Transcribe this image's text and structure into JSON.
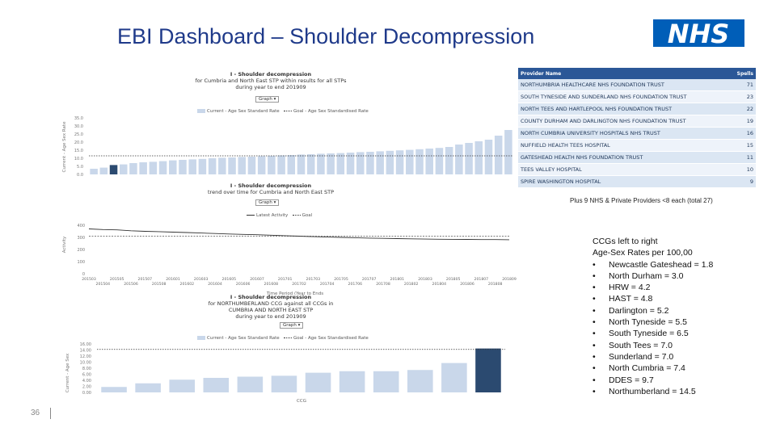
{
  "title": "EBI Dashboard – Shoulder Decompression",
  "logo_text": "NHS",
  "colors": {
    "bar": "#c9d7ea",
    "highlight": "#2b4a70",
    "header": "#2b5797",
    "nhs_blue": "#005eb8"
  },
  "chart1": {
    "title_bold": "I - Shoulder decompression",
    "subtitle1": "for Cumbria and North East STP within results for all STPs",
    "subtitle2": "during year to end 201909",
    "dropdown": "Graph ▾",
    "legend_bar": "Current - Age Sex Standard Rate",
    "legend_line": "Goal - Age Sex Standardised Rate",
    "ylabel": "Current - Age Sex Rate",
    "ticks": [
      "0.0",
      "5.0",
      "10.0",
      "15.0",
      "20.0",
      "25.0",
      "30.0",
      "35.0"
    ]
  },
  "chart2": {
    "title_bold": "I - Shoulder decompression",
    "subtitle1": "trend over time for Cumbria and North East STP",
    "dropdown": "Graph ▾",
    "legend_line": "Latest Activity",
    "legend_goal": "Goal",
    "ylabel": "Activity",
    "ticks": [
      "0",
      "100",
      "200",
      "300",
      "400"
    ],
    "xlabel": "Time Period (Year to Ends",
    "xticks_top": [
      "201503",
      "201505",
      "201507",
      "201601",
      "201603",
      "201605",
      "201607",
      "201701",
      "201703",
      "201705",
      "201707",
      "201801",
      "201803",
      "201805",
      "201807",
      "201809"
    ],
    "xticks_bottom": [
      "201504",
      "201506",
      "201508",
      "201602",
      "201604",
      "201606",
      "201608",
      "201702",
      "201704",
      "201706",
      "201708",
      "201802",
      "201804",
      "201806",
      "201808"
    ]
  },
  "chart3": {
    "title_bold": "I - Shoulder decompression",
    "subtitle1": "for NORTHUMBERLAND CCG against all CCGs in",
    "subtitle2": "CUMBRIA AND NORTH EAST STP",
    "subtitle3": "during year to end 201909",
    "dropdown": "Graph ▾",
    "legend_bar": "Current - Age Sex Standard Rate",
    "legend_line": "Goal - Age Sex Standardised Rate",
    "ylabel": "Current - Age Sex",
    "ticks": [
      "0.00",
      "2.00",
      "4.00",
      "6.00",
      "8.00",
      "10.00",
      "12.00",
      "14.00",
      "16.00"
    ],
    "xlabel": "CCG"
  },
  "chart_data": [
    {
      "type": "bar",
      "title": "I - Shoulder decompression",
      "values": [
        3.5,
        4.2,
        5.8,
        6.2,
        7.0,
        7.5,
        7.8,
        8.2,
        8.7,
        9.0,
        9.3,
        9.6,
        10.0,
        10.3,
        10.5,
        10.8,
        11.0,
        11.3,
        11.5,
        11.8,
        12.0,
        12.3,
        12.5,
        12.8,
        13.0,
        13.2,
        13.5,
        13.8,
        14.0,
        14.3,
        14.6,
        14.9,
        15.2,
        15.6,
        16.0,
        16.4,
        17.0,
        18.5,
        19.5,
        20.5,
        21.5,
        24.0,
        27.5
      ],
      "highlight_index": 2,
      "goal": 11.5,
      "ylim": [
        0,
        35
      ]
    },
    {
      "type": "line",
      "title": "I - Shoulder decompression",
      "series": [
        {
          "name": "Latest Activity",
          "values": [
            370,
            365,
            362,
            355,
            350,
            347,
            343,
            340,
            336,
            332,
            328,
            325,
            322,
            318,
            314,
            310,
            306,
            303,
            300,
            297,
            294,
            292,
            290,
            288,
            286,
            285,
            284,
            283,
            282,
            282,
            281
          ]
        },
        {
          "name": "Goal",
          "values": [
            310,
            310,
            310,
            310,
            310,
            310,
            310,
            310,
            310,
            310,
            310,
            310,
            310,
            310,
            310,
            310,
            310,
            310,
            310,
            310,
            310,
            310,
            310,
            310,
            310,
            310,
            310,
            310,
            310,
            310,
            310
          ]
        }
      ],
      "ylim": [
        0,
        400
      ]
    },
    {
      "type": "bar",
      "title": "I - Shoulder decompression",
      "values": [
        1.8,
        3.0,
        4.2,
        4.8,
        5.2,
        5.5,
        6.5,
        7.0,
        7.0,
        7.4,
        9.7,
        14.5
      ],
      "highlight_index": 11,
      "goal": 14.2,
      "ylim": [
        0,
        16
      ]
    }
  ],
  "providers": {
    "header": {
      "name": "Provider Name",
      "spells": "Spells"
    },
    "rows": [
      {
        "name": "NORTHUMBRIA HEALTHCARE NHS FOUNDATION TRUST",
        "spells": "71"
      },
      {
        "name": "SOUTH TYNESIDE AND SUNDERLAND NHS FOUNDATION TRUST",
        "spells": "23"
      },
      {
        "name": "NORTH TEES AND HARTLEPOOL NHS FOUNDATION TRUST",
        "spells": "22"
      },
      {
        "name": "COUNTY DURHAM AND DARLINGTON NHS FOUNDATION TRUST",
        "spells": "19"
      },
      {
        "name": "NORTH CUMBRIA UNIVERSITY HOSPITALS NHS TRUST",
        "spells": "16"
      },
      {
        "name": "NUFFIELD HEALTH TEES HOSPITAL",
        "spells": "15"
      },
      {
        "name": "GATESHEAD HEALTH NHS FOUNDATION TRUST",
        "spells": "11"
      },
      {
        "name": "TEES VALLEY HOSPITAL",
        "spells": "10"
      },
      {
        "name": "SPIRE WASHINGTON HOSPITAL",
        "spells": "9"
      }
    ]
  },
  "note": "Plus 9 NHS & Private Providers <8 each (total 27)",
  "ccg": {
    "heading1": "CCGs left to right",
    "heading2": "Age-Sex Rates per 100,00",
    "items": [
      "Newcastle Gateshead = 1.8",
      "North Durham = 3.0",
      "HRW = 4.2",
      "HAST = 4.8",
      "Darlington = 5.2",
      "North Tyneside = 5.5",
      "South Tyneside = 6.5",
      "South Tees = 7.0",
      "Sunderland = 7.0",
      "North Cumbria = 7.4",
      "DDES = 9.7",
      "Northumberland = 14.5"
    ]
  },
  "page_number": "36"
}
